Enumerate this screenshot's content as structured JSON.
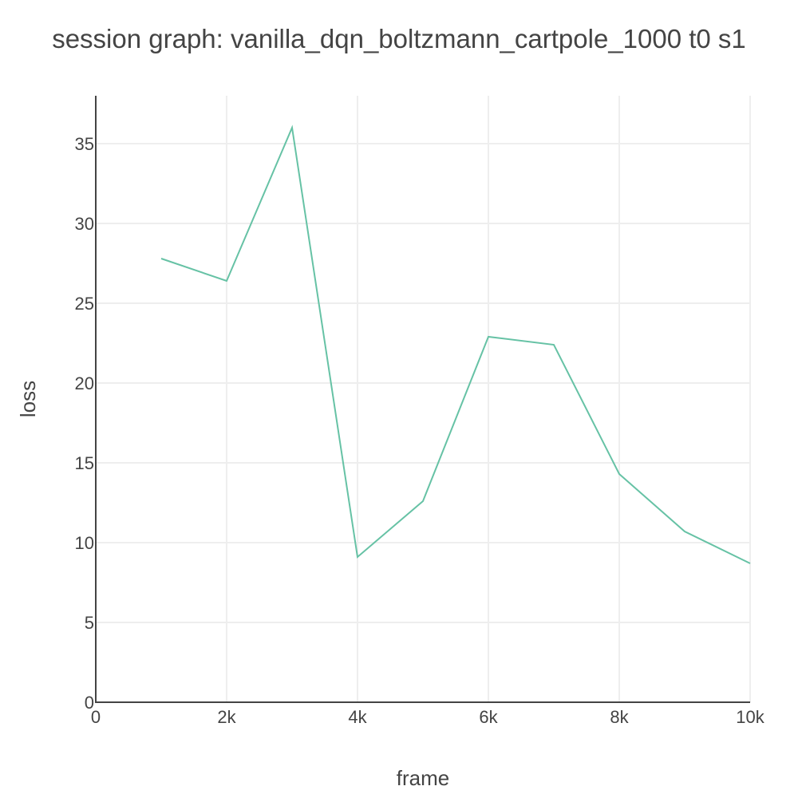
{
  "chart_data": {
    "type": "line",
    "title": "session graph: vanilla_dqn_boltzmann_cartpole_1000 t0 s1",
    "xlabel": "frame",
    "ylabel": "loss",
    "xlim": [
      0,
      10000
    ],
    "ylim": [
      0,
      38
    ],
    "grid": true,
    "x_ticks": [
      0,
      2000,
      4000,
      6000,
      8000,
      10000
    ],
    "x_tick_labels": [
      "0",
      "2k",
      "4k",
      "6k",
      "8k",
      "10k"
    ],
    "y_ticks": [
      0,
      5,
      10,
      15,
      20,
      25,
      30,
      35
    ],
    "y_tick_labels": [
      "0",
      "5",
      "10",
      "15",
      "20",
      "25",
      "30",
      "35"
    ],
    "series": [
      {
        "color": "#66c2a5",
        "x": [
          1000,
          2000,
          3000,
          4000,
          5000,
          6000,
          7000,
          8000,
          9000,
          10000
        ],
        "y": [
          27.8,
          26.4,
          36.0,
          9.1,
          12.6,
          22.9,
          22.4,
          14.3,
          10.7,
          8.7
        ]
      }
    ]
  }
}
